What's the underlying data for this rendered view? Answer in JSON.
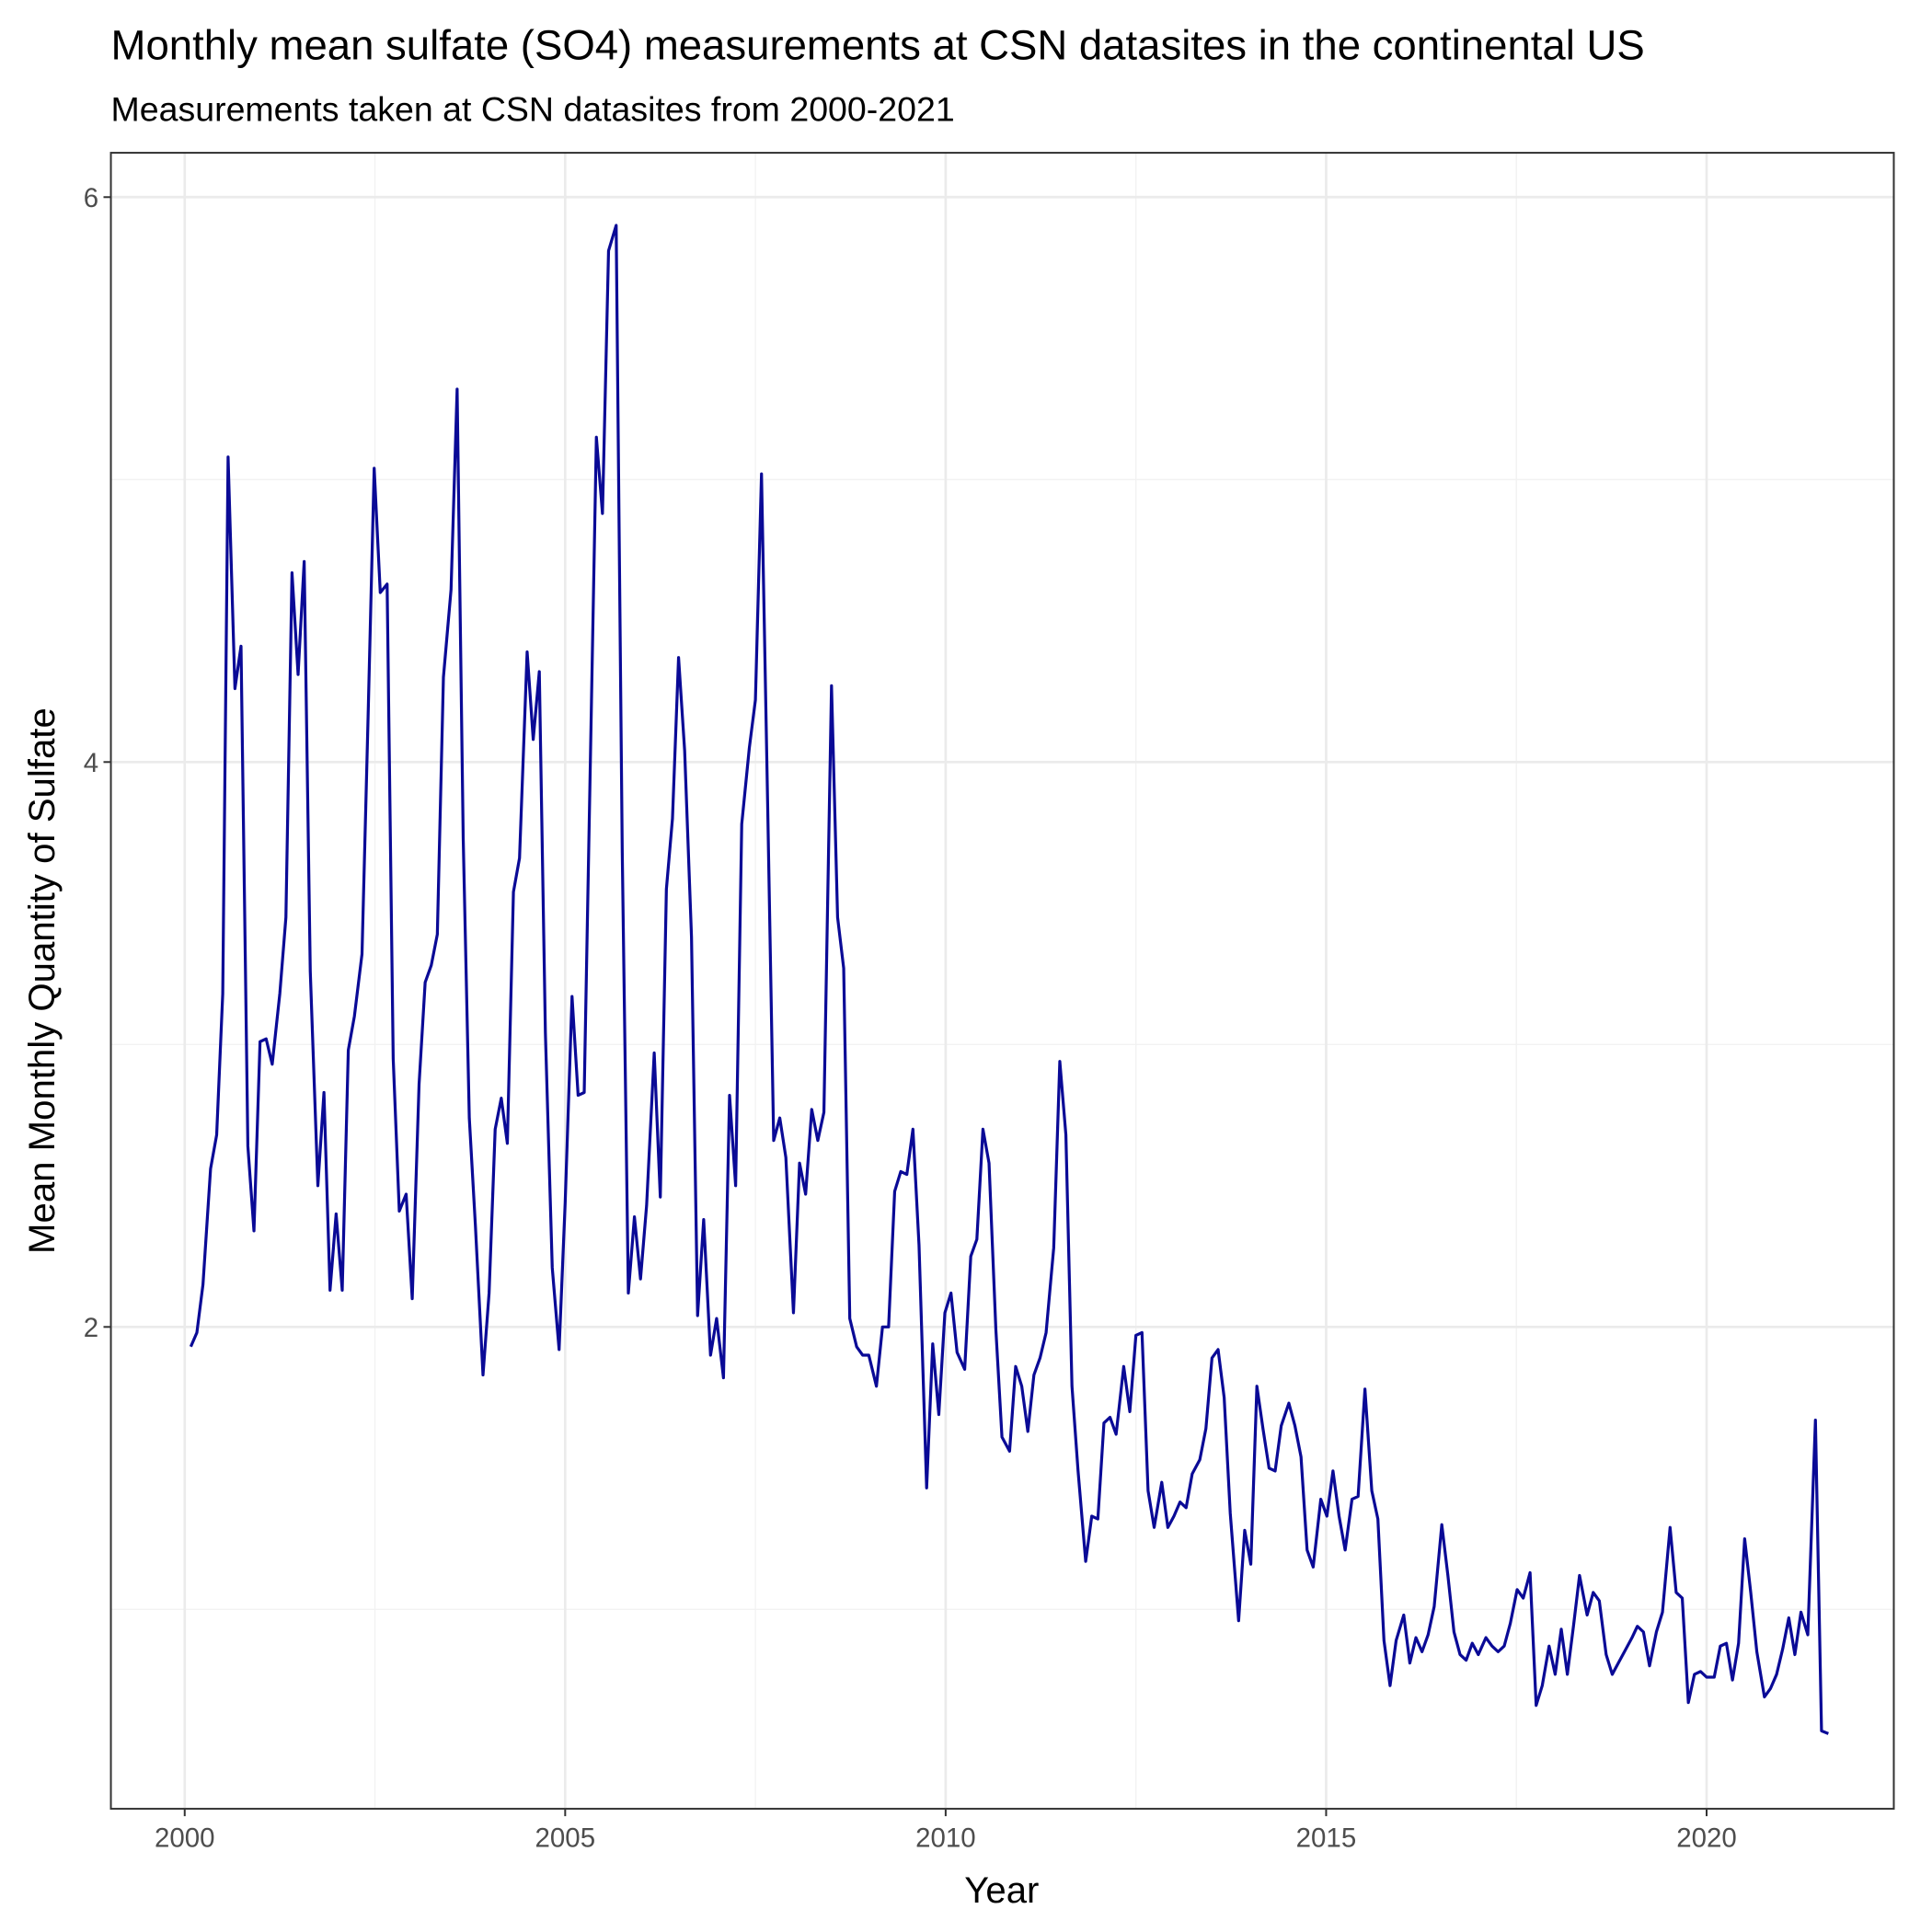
{
  "chart_data": {
    "type": "line",
    "title": "Monthly mean sulfate (SO4) measurements at CSN datasites in the continental US",
    "subtitle": "Measurements taken at CSN datasites from 2000-2021",
    "x_label": "Year",
    "y_label": "Mean Monthly Quantity of Sulfate",
    "color": "#0a0a96",
    "grid": true,
    "xlim": [
      1999.03,
      2022.46
    ],
    "ylim": [
      0.294,
      6.157
    ],
    "xticks": [
      2000,
      2005,
      2010,
      2015,
      2020
    ],
    "yticks": [
      2,
      4,
      6
    ],
    "x_minor_grid": [
      2002.5,
      2007.5,
      2012.5,
      2017.5
    ],
    "y_minor_grid": [
      1,
      3,
      5
    ],
    "x": [
      2000.08,
      2000.16,
      2000.24,
      2000.34,
      2000.42,
      2000.5,
      2000.57,
      2000.66,
      2000.74,
      2000.83,
      2000.91,
      2000.99,
      2001.07,
      2001.15,
      2001.25,
      2001.33,
      2001.41,
      2001.49,
      2001.57,
      2001.65,
      2001.75,
      2001.83,
      2001.91,
      2001.99,
      2002.07,
      2002.15,
      2002.23,
      2002.33,
      2002.41,
      2002.49,
      2002.57,
      2002.66,
      2002.74,
      2002.82,
      2002.91,
      2002.99,
      2003.08,
      2003.16,
      2003.24,
      2003.32,
      2003.4,
      2003.5,
      2003.58,
      2003.66,
      2003.74,
      2003.82,
      2003.92,
      2004.0,
      2004.08,
      2004.16,
      2004.24,
      2004.32,
      2004.4,
      2004.5,
      2004.58,
      2004.66,
      2004.74,
      2004.83,
      2004.92,
      2005.0,
      2005.09,
      2005.17,
      2005.25,
      2005.33,
      2005.41,
      2005.49,
      2005.57,
      2005.67,
      2005.75,
      2005.83,
      2005.91,
      2005.99,
      2006.07,
      2006.17,
      2006.25,
      2006.33,
      2006.41,
      2006.49,
      2006.57,
      2006.66,
      2006.74,
      2006.82,
      2006.91,
      2006.99,
      2007.08,
      2007.16,
      2007.24,
      2007.32,
      2007.42,
      2007.5,
      2007.58,
      2007.66,
      2007.74,
      2007.82,
      2007.9,
      2008.0,
      2008.08,
      2008.16,
      2008.24,
      2008.32,
      2008.4,
      2008.5,
      2008.58,
      2008.66,
      2008.74,
      2008.83,
      2008.91,
      2008.99,
      2009.09,
      2009.17,
      2009.25,
      2009.33,
      2009.41,
      2009.49,
      2009.57,
      2009.65,
      2009.75,
      2009.83,
      2009.91,
      2009.99,
      2010.07,
      2010.15,
      2010.25,
      2010.33,
      2010.41,
      2010.49,
      2010.57,
      2010.66,
      2010.74,
      2010.84,
      2010.92,
      2011.0,
      2011.08,
      2011.16,
      2011.24,
      2011.32,
      2011.42,
      2011.5,
      2011.58,
      2011.66,
      2011.74,
      2011.84,
      2011.92,
      2012.0,
      2012.08,
      2012.16,
      2012.24,
      2012.34,
      2012.42,
      2012.5,
      2012.58,
      2012.66,
      2012.74,
      2012.84,
      2012.92,
      2013.0,
      2013.08,
      2013.16,
      2013.24,
      2013.34,
      2013.42,
      2013.5,
      2013.58,
      2013.66,
      2013.74,
      2013.85,
      2013.93,
      2014.01,
      2014.09,
      2014.17,
      2014.25,
      2014.33,
      2014.41,
      2014.51,
      2014.59,
      2014.67,
      2014.75,
      2014.83,
      2014.93,
      2015.01,
      2015.09,
      2015.17,
      2015.25,
      2015.34,
      2015.42,
      2015.51,
      2015.6,
      2015.68,
      2015.76,
      2015.84,
      2015.92,
      2016.02,
      2016.1,
      2016.18,
      2016.26,
      2016.34,
      2016.42,
      2016.52,
      2016.6,
      2016.68,
      2016.76,
      2016.84,
      2016.92,
      2017.0,
      2017.1,
      2017.18,
      2017.26,
      2017.34,
      2017.42,
      2017.51,
      2017.59,
      2017.68,
      2017.76,
      2017.84,
      2017.93,
      2018.01,
      2018.09,
      2018.17,
      2018.25,
      2018.33,
      2018.43,
      2018.51,
      2018.59,
      2018.68,
      2018.76,
      2018.84,
      2018.92,
      2019.02,
      2019.09,
      2019.17,
      2019.25,
      2019.34,
      2019.42,
      2019.52,
      2019.6,
      2019.68,
      2019.76,
      2019.84,
      2019.92,
      2020.0,
      2020.1,
      2020.18,
      2020.26,
      2020.34,
      2020.42,
      2020.5,
      2020.58,
      2020.66,
      2020.76,
      2020.84,
      2020.92,
      2021.0,
      2021.08,
      2021.16,
      2021.24,
      2021.33,
      2021.43,
      2021.51,
      2021.6
    ],
    "values": [
      1.93,
      1.98,
      2.15,
      2.56,
      2.68,
      3.18,
      5.08,
      4.26,
      4.41,
      2.64,
      2.34,
      3.01,
      3.02,
      2.93,
      3.18,
      3.45,
      4.67,
      4.31,
      4.71,
      3.26,
      2.5,
      2.83,
      2.13,
      2.4,
      2.13,
      2.98,
      3.1,
      3.32,
      4.16,
      5.04,
      4.6,
      4.63,
      2.95,
      2.41,
      2.47,
      2.1,
      2.86,
      3.22,
      3.28,
      3.39,
      4.3,
      4.61,
      5.32,
      3.73,
      2.74,
      2.36,
      1.83,
      2.12,
      2.7,
      2.81,
      2.65,
      3.54,
      3.66,
      4.39,
      4.08,
      4.32,
      3.04,
      2.21,
      1.92,
      2.44,
      3.17,
      2.82,
      2.83,
      3.99,
      5.15,
      4.88,
      5.81,
      5.9,
      3.68,
      2.12,
      2.39,
      2.17,
      2.43,
      2.97,
      2.46,
      3.55,
      3.8,
      4.37,
      4.04,
      3.38,
      2.04,
      2.38,
      1.9,
      2.03,
      1.82,
      2.82,
      2.5,
      3.78,
      4.05,
      4.22,
      5.02,
      3.86,
      2.66,
      2.74,
      2.6,
      2.05,
      2.58,
      2.47,
      2.77,
      2.66,
      2.76,
      4.27,
      3.45,
      3.27,
      2.03,
      1.93,
      1.9,
      1.9,
      1.79,
      2.0,
      2.0,
      2.48,
      2.55,
      2.54,
      2.7,
      2.29,
      1.43,
      1.94,
      1.69,
      2.05,
      2.12,
      1.91,
      1.85,
      2.25,
      2.31,
      2.7,
      2.58,
      1.99,
      1.61,
      1.56,
      1.86,
      1.79,
      1.63,
      1.83,
      1.89,
      1.98,
      2.28,
      2.94,
      2.68,
      1.79,
      1.49,
      1.17,
      1.33,
      1.32,
      1.66,
      1.68,
      1.62,
      1.86,
      1.7,
      1.97,
      1.98,
      1.42,
      1.29,
      1.45,
      1.29,
      1.33,
      1.38,
      1.36,
      1.48,
      1.53,
      1.64,
      1.89,
      1.92,
      1.75,
      1.34,
      0.96,
      1.28,
      1.16,
      1.79,
      1.64,
      1.5,
      1.49,
      1.65,
      1.73,
      1.65,
      1.54,
      1.21,
      1.15,
      1.39,
      1.33,
      1.49,
      1.33,
      1.21,
      1.39,
      1.4,
      1.78,
      1.42,
      1.32,
      0.89,
      0.73,
      0.89,
      0.98,
      0.81,
      0.9,
      0.85,
      0.91,
      1.01,
      1.3,
      1.12,
      0.92,
      0.84,
      0.82,
      0.88,
      0.84,
      0.9,
      0.87,
      0.85,
      0.87,
      0.95,
      1.07,
      1.04,
      1.13,
      0.66,
      0.73,
      0.87,
      0.77,
      0.93,
      0.77,
      0.94,
      1.12,
      0.98,
      1.06,
      1.03,
      0.84,
      0.77,
      0.81,
      0.85,
      0.9,
      0.94,
      0.92,
      0.8,
      0.92,
      0.99,
      1.29,
      1.06,
      1.04,
      0.67,
      0.77,
      0.78,
      0.76,
      0.76,
      0.87,
      0.88,
      0.75,
      0.88,
      1.25,
      1.06,
      0.85,
      0.69,
      0.72,
      0.77,
      0.86,
      0.97,
      0.84,
      0.99,
      0.91,
      1.67,
      0.57,
      0.56
    ]
  }
}
